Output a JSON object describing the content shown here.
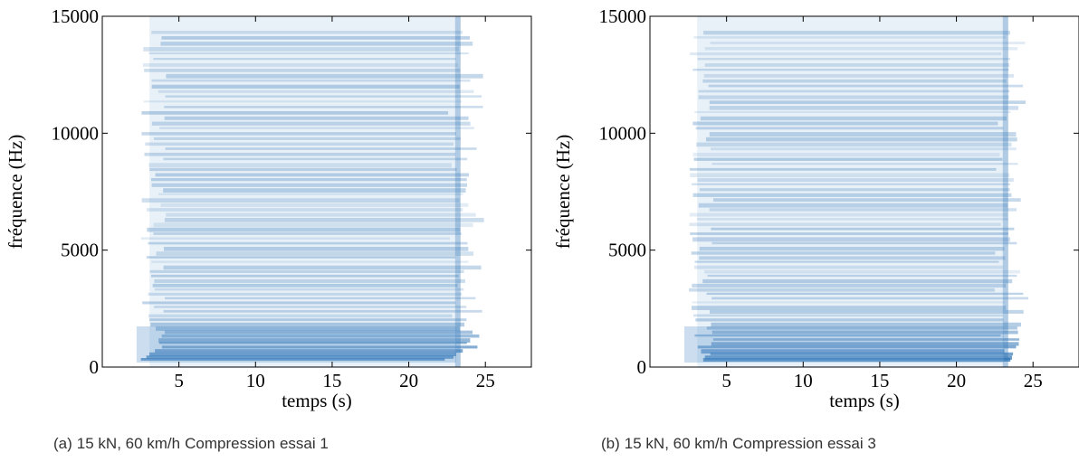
{
  "chart_data": [
    {
      "type": "spectrogram",
      "xlabel": "temps (s)",
      "ylabel": "fréquence (Hz)",
      "xlim": [
        0,
        28
      ],
      "ylim": [
        0,
        15000
      ],
      "xticks": [
        5,
        10,
        15,
        20,
        25
      ],
      "yticks": [
        0,
        5000,
        10000,
        15000
      ],
      "caption": {
        "label": "(a)",
        "params": "15 kN, 60 km/h",
        "text": "Compression essai 1"
      }
    },
    {
      "type": "spectrogram",
      "xlabel": "temps (s)",
      "ylabel": "fréquence (Hz)",
      "xlim": [
        0,
        28
      ],
      "ylim": [
        0,
        15000
      ],
      "xticks": [
        5,
        10,
        15,
        20,
        25
      ],
      "yticks": [
        0,
        5000,
        10000,
        15000
      ],
      "caption": {
        "label": "(b)",
        "params": "15 kN, 60 km/h",
        "text": "Compression essai 3"
      }
    }
  ]
}
